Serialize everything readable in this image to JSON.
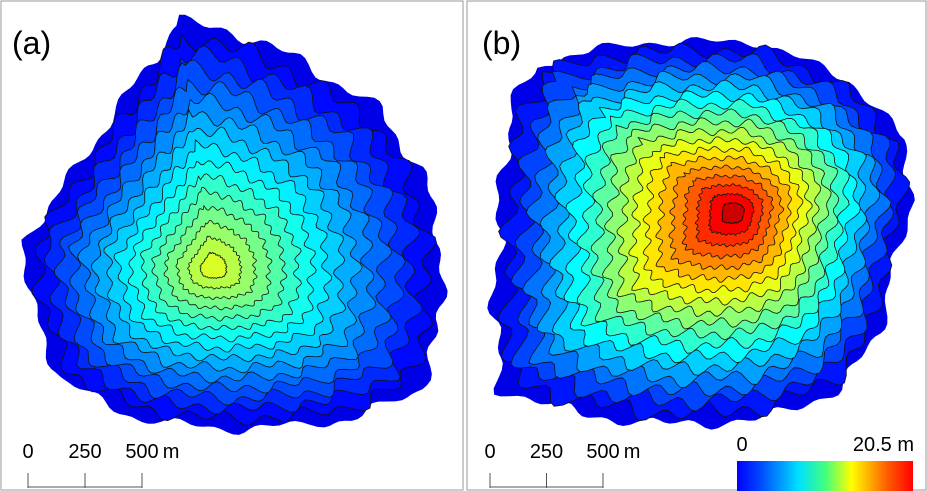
{
  "panels": [
    {
      "label": "(a)",
      "scale_bar": {
        "ticks": [
          0,
          250,
          500
        ],
        "unit": "m"
      }
    },
    {
      "label": "(b)",
      "scale_bar": {
        "ticks": [
          0,
          250,
          500
        ],
        "unit": "m"
      }
    }
  ],
  "colorbar": {
    "min_label": "0",
    "max_label": "20.5 m"
  }
}
